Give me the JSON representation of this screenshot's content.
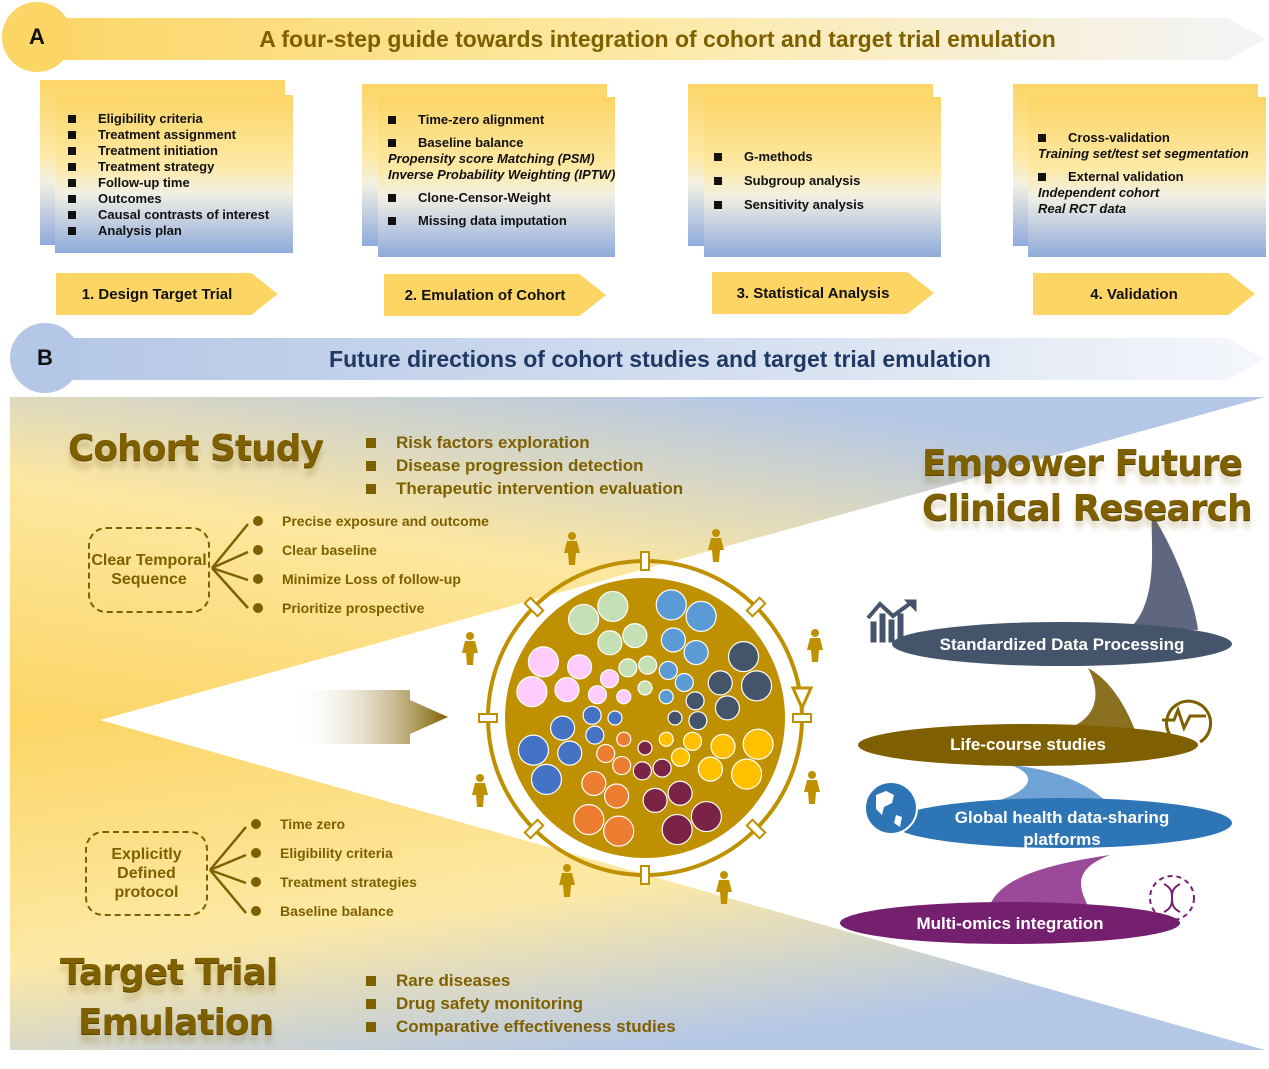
{
  "panel_a": {
    "badge": "A",
    "title": "A four-step guide towards integration of cohort and target trial emulation",
    "steps": [
      {
        "label": "1. Design Target Trial",
        "items": [
          {
            "text": "Eligibility criteria"
          },
          {
            "text": "Treatment assignment"
          },
          {
            "text": "Treatment initiation"
          },
          {
            "text": "Treatment strategy"
          },
          {
            "text": "Follow-up time"
          },
          {
            "text": "Outcomes"
          },
          {
            "text": "Causal contrasts of interest"
          },
          {
            "text": "Analysis plan"
          }
        ]
      },
      {
        "label": "2. Emulation of Cohort",
        "items": [
          {
            "text": "Time-zero alignment"
          },
          {
            "text": "Baseline balance"
          },
          {
            "text": "Propensity score Matching (PSM)",
            "italic": true
          },
          {
            "text": "Inverse Probability Weighting (IPTW)",
            "italic": true
          },
          {
            "text": "Clone-Censor-Weight"
          },
          {
            "text": "Missing data imputation"
          }
        ]
      },
      {
        "label": "3. Statistical Analysis",
        "items": [
          {
            "text": "G-methods"
          },
          {
            "text": "Subgroup analysis"
          },
          {
            "text": "Sensitivity analysis"
          }
        ]
      },
      {
        "label": "4. Validation",
        "items": [
          {
            "text": "Cross-validation"
          },
          {
            "text": "Training set/test set segmentation",
            "italic": true
          },
          {
            "text": "External validation"
          },
          {
            "text": "Independent cohort",
            "italic": true
          },
          {
            "text": "Real RCT data",
            "italic": true
          }
        ]
      }
    ]
  },
  "panel_b": {
    "badge": "B",
    "title": "Future directions of cohort studies and target trial emulation",
    "cohort": {
      "title": "Cohort Study",
      "bullets": [
        "Risk factors exploration",
        "Disease progression detection",
        "Therapeutic intervention evaluation"
      ],
      "box": "Clear Temporal Sequence",
      "features": [
        "Precise exposure and outcome",
        "Clear baseline",
        "Minimize Loss of follow-up",
        "Prioritize prospective"
      ]
    },
    "tte": {
      "title_line1": "Target Trial",
      "title_line2": "Emulation",
      "bullets": [
        "Rare diseases",
        "Drug safety monitoring",
        "Comparative effectiveness studies"
      ],
      "box": "Explicitly Defined protocol",
      "features": [
        "Time zero",
        "Eligibility criteria",
        "Treatment strategies",
        "Baseline balance"
      ]
    },
    "empower": {
      "line1": "Empower Future",
      "line2": "Clinical Research",
      "items": [
        {
          "label": "Standardized Data Processing",
          "color": "#44546a",
          "icon": "bar-chart-trend-icon"
        },
        {
          "label": "Life-course studies",
          "color": "#7f6000",
          "icon": "cycle-pulse-icon"
        },
        {
          "label": "Global health data-sharing platforms",
          "color": "#2e75b6",
          "icon": "globe-icon"
        },
        {
          "label": "Multi-omics integration",
          "color": "#74206f",
          "icon": "dna-icon"
        }
      ]
    },
    "cluster_colors": [
      "#c5e0b4",
      "#5b9bd5",
      "#44546a",
      "#ffc000",
      "#7b2346",
      "#ed7d31",
      "#4472c4",
      "#ffccff"
    ],
    "ring_color": "#bf9000",
    "life_stage_icons": [
      "walking-person-icon",
      "standing-man-icon",
      "elderly-person-icon",
      "pregnancy-icon",
      "fetus-icon",
      "baby-icon",
      "children-playing-icon",
      "crawling-person-icon"
    ]
  }
}
